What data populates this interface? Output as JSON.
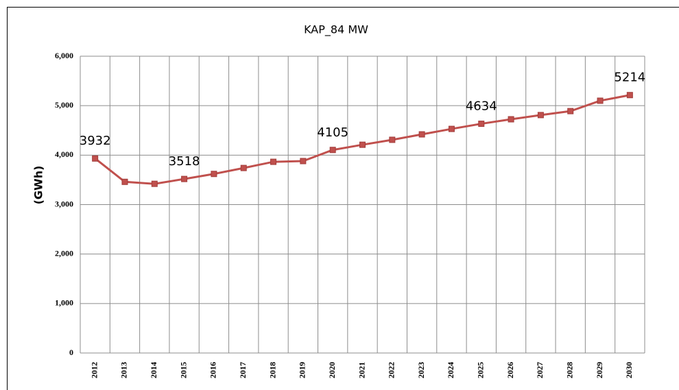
{
  "chart_data": {
    "type": "line",
    "title": "KAP_84 MW",
    "y_label": "(GWh)",
    "categories": [
      "2012",
      "2013",
      "2014",
      "2015",
      "2016",
      "2017",
      "2018",
      "2019",
      "2020",
      "2021",
      "2022",
      "2023",
      "2024",
      "2025",
      "2026",
      "2027",
      "2028",
      "2029",
      "2030"
    ],
    "series": [
      {
        "name": "KAP_84 MW",
        "color": "#c0504d",
        "values": [
          3932,
          3460,
          3420,
          3518,
          3620,
          3740,
          3865,
          3880,
          4105,
          4210,
          4310,
          4420,
          4530,
          4634,
          4725,
          4810,
          4890,
          5100,
          5214
        ],
        "value_labels": [
          "3932",
          null,
          null,
          "3518",
          null,
          null,
          null,
          null,
          "4105",
          null,
          null,
          null,
          null,
          "4634",
          null,
          null,
          null,
          null,
          "5214"
        ]
      }
    ],
    "ylim": [
      0,
      6000
    ],
    "yticks": [
      0,
      {
        "value": 1000,
        "label": "1,000"
      },
      {
        "value": 2000,
        "label": "2,000"
      },
      {
        "value": 3000,
        "label": "3,000"
      },
      {
        "value": 4000,
        "label": "4,000"
      },
      {
        "value": 5000,
        "label": "5,000"
      },
      {
        "value": 6000,
        "label": "6,000"
      }
    ],
    "grid": true
  }
}
